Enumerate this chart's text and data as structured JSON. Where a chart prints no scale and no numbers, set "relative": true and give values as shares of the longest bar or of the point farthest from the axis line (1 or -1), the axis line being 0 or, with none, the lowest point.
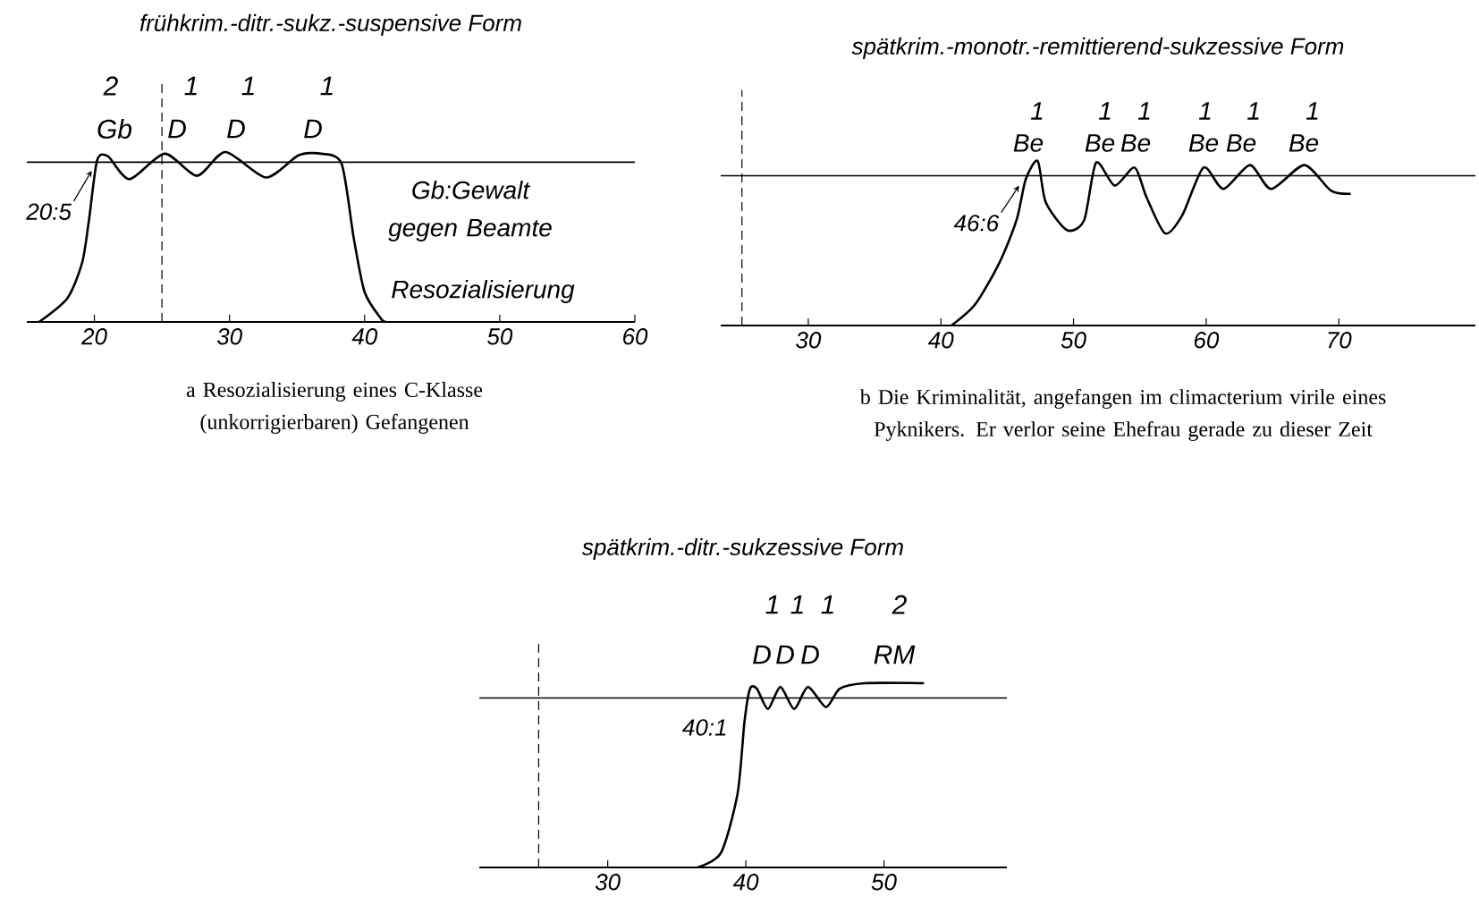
{
  "chart_data": [
    {
      "type": "line",
      "title": "frühkrim.-ditr.-sukz.-suspensive Form",
      "relative": true,
      "xlim": [
        15,
        60
      ],
      "xticks": [
        20,
        30,
        40,
        50,
        60
      ],
      "x": [
        15.9,
        18.0,
        19.1,
        19.6,
        20.2,
        21.0,
        22.6,
        25.2,
        27.6,
        29.7,
        32.7,
        35.1,
        36.8,
        38.3,
        39.2,
        40.0,
        41.2,
        41.6
      ],
      "values": [
        0,
        0.14,
        0.35,
        0.6,
        0.95,
        0.975,
        0.84,
        0.99,
        0.86,
        1.0,
        0.85,
        0.98,
        0.99,
        0.93,
        0.49,
        0.175,
        0.02,
        0
      ],
      "ref_lines": [
        {
          "axis": "y",
          "value": 0.94
        },
        {
          "axis": "x",
          "value": 25,
          "line_style": "dashed"
        }
      ],
      "annotations": [
        "2",
        "Gb",
        "1",
        "D",
        "1",
        "D",
        "1",
        "D",
        {
          "text": "20:5",
          "x": 19.8,
          "y": 0.89
        },
        "Gb:Gewalt gegen Beamte",
        "Resozialisierung",
        "a Resozialisierung eines C-Klasse (unkorrigierbaren) Gefangenen"
      ]
    },
    {
      "type": "line",
      "title": "spätkrim.-monotr.-remittierend-sukzessive Form",
      "relative": true,
      "xlim": [
        23.4,
        80.3
      ],
      "xticks": [
        30,
        40,
        50,
        60,
        70
      ],
      "x": [
        40.8,
        42.6,
        44.4,
        45.7,
        46.4,
        47.3,
        47.9,
        49.5,
        50.8,
        51.7,
        53.1,
        54.6,
        55.5,
        56.9,
        58.2,
        59.8,
        61.3,
        63.3,
        64.9,
        67.4,
        69.4,
        70.9
      ],
      "values": [
        0,
        0.13,
        0.38,
        0.64,
        0.89,
        1.0,
        0.75,
        0.58,
        0.64,
        0.99,
        0.85,
        0.96,
        0.78,
        0.56,
        0.67,
        0.96,
        0.83,
        0.975,
        0.83,
        0.975,
        0.82,
        0.8
      ],
      "ref_lines": [
        {
          "axis": "y",
          "value": 0.91
        },
        {
          "axis": "x",
          "value": 25,
          "line_style": "dashed"
        }
      ],
      "annotations": [
        "1",
        "Be",
        "1",
        "Be",
        "1",
        "Be",
        "1",
        "Be",
        "1",
        "Be",
        "1",
        "Be",
        {
          "text": "46:6",
          "x": 45.9,
          "y": 0.85
        },
        "b Die Kriminalität, angefangen im climacterium virile eines Pyknikers. Er verlor seine Ehefrau gerade zu dieser Zeit"
      ]
    },
    {
      "type": "line",
      "title": "spätkrim.-ditr.-sukzessive Form",
      "relative": true,
      "xlim": [
        20.7,
        58.9
      ],
      "xticks": [
        30,
        40,
        50
      ],
      "x": [
        36.5,
        38.2,
        39.4,
        39.9,
        40.3,
        40.8,
        41.6,
        42.5,
        43.5,
        44.5,
        45.8,
        46.8,
        48.6,
        52.9
      ],
      "values": [
        0,
        0.08,
        0.4,
        0.79,
        0.97,
        0.97,
        0.86,
        0.98,
        0.86,
        0.98,
        0.87,
        0.97,
        1.0,
        1.0
      ],
      "ref_lines": [
        {
          "axis": "y",
          "value": 0.92
        },
        {
          "axis": "x",
          "value": 25,
          "line_style": "dashed"
        }
      ],
      "annotations": [
        "1",
        "D",
        "1",
        "D",
        "1",
        "D",
        "2",
        "RM",
        {
          "text": "40:1",
          "x": 39.6,
          "y": 0.76
        }
      ]
    }
  ]
}
